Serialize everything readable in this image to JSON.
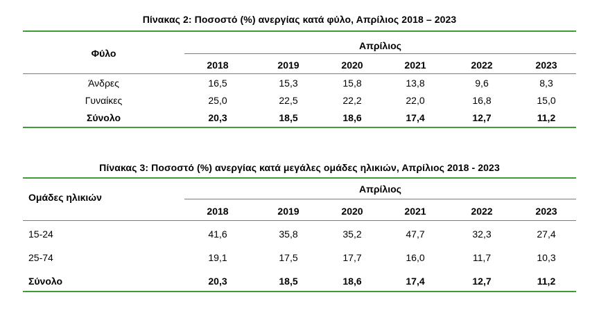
{
  "table2": {
    "title": "Πίνακας 2: Ποσοστό (%) ανεργίας κατά φύλο, Απρίλιος 2018 – 2023",
    "row_header": "Φύλο",
    "group_header": "Απρίλιος",
    "years": [
      "2018",
      "2019",
      "2020",
      "2021",
      "2022",
      "2023"
    ],
    "rows": [
      {
        "label": "Άνδρες",
        "values": [
          "16,5",
          "15,3",
          "15,8",
          "13,8",
          "9,6",
          "8,3"
        ]
      },
      {
        "label": "Γυναίκες",
        "values": [
          "25,0",
          "22,5",
          "22,2",
          "22,0",
          "16,8",
          "15,0"
        ]
      },
      {
        "label": "Σύνολο",
        "values": [
          "20,3",
          "18,5",
          "18,6",
          "17,4",
          "12,7",
          "11,2"
        ]
      }
    ]
  },
  "table3": {
    "title": "Πίνακας 3: Ποσοστό (%) ανεργίας κατά μεγάλες ομάδες ηλικιών, Απρίλιος 2018 - 2023",
    "row_header": "Ομάδες ηλικιών",
    "group_header": "Απρίλιος",
    "years": [
      "2018",
      "2019",
      "2020",
      "2021",
      "2022",
      "2023"
    ],
    "rows": [
      {
        "label": "15-24",
        "values": [
          "41,6",
          "35,8",
          "35,2",
          "47,7",
          "32,3",
          "27,4"
        ]
      },
      {
        "label": "25-74",
        "values": [
          "19,1",
          "17,5",
          "17,7",
          "16,0",
          "11,7",
          "10,3"
        ]
      },
      {
        "label": "Σύνολο",
        "values": [
          "20,3",
          "18,5",
          "18,6",
          "17,4",
          "12,7",
          "11,2"
        ]
      }
    ]
  }
}
